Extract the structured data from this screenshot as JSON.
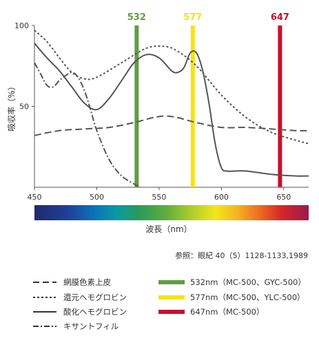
{
  "chart_data": {
    "type": "line",
    "xlabel": "波長（nm）",
    "ylabel": "吸収率（%）",
    "xlim": [
      450,
      670
    ],
    "ylim": [
      0,
      100
    ],
    "xticks": [
      "450",
      "500",
      "550",
      "600",
      "650"
    ],
    "yticks": [
      "100",
      "50"
    ],
    "grid": false,
    "legend_placement": "below",
    "series": [
      {
        "name": "網膜色素上皮",
        "style": "dashed",
        "x": [
          450,
          470,
          490,
          510,
          530,
          545,
          555,
          565,
          580,
          600,
          620,
          640,
          660,
          670
        ],
        "y": [
          32,
          35,
          36,
          37,
          40,
          43,
          44,
          43,
          40,
          37,
          37,
          36,
          35,
          35
        ]
      },
      {
        "name": "還元ヘモグロビン",
        "style": "dotted",
        "x": [
          450,
          460,
          470,
          480,
          490,
          500,
          520,
          540,
          555,
          565,
          580,
          600,
          620,
          640,
          660,
          670
        ],
        "y": [
          97,
          90,
          80,
          71,
          67,
          68,
          77,
          86,
          87,
          84,
          75,
          57,
          43,
          34,
          29,
          27
        ]
      },
      {
        "name": "酸化ヘモグロビン",
        "style": "solid",
        "x": [
          450,
          460,
          470,
          480,
          490,
          500,
          510,
          520,
          530,
          540,
          550,
          560,
          565,
          570,
          575,
          580,
          585,
          590,
          595,
          600,
          605,
          610,
          620,
          640,
          660,
          670
        ],
        "y": [
          89,
          80,
          72,
          62,
          52,
          48,
          55,
          66,
          77,
          82,
          80,
          72,
          71,
          74,
          83,
          83,
          72,
          52,
          27,
          12,
          10,
          10,
          10,
          8,
          7,
          7
        ],
        "name_note": ""
      },
      {
        "name": "キサントフィル",
        "style": "dash-dot",
        "x": [
          450,
          455,
          460,
          465,
          470,
          475,
          480,
          485,
          490,
          495,
          500,
          510,
          520,
          530,
          535
        ],
        "y": [
          77,
          70,
          63,
          62,
          66,
          69,
          71,
          68,
          60,
          48,
          35,
          17,
          7,
          2,
          0
        ]
      }
    ],
    "wavelength_lines": [
      {
        "label": "532",
        "x": 532,
        "color": "#5e9e3f",
        "legend": "532nm（MC-500、GYC-500）"
      },
      {
        "label": "577",
        "x": 577,
        "color": "#f4e317",
        "legend": "577nm（MC-500、YLC-500）"
      },
      {
        "label": "647",
        "x": 647,
        "color": "#c8102e",
        "legend": "647nm（MC-500）"
      }
    ]
  },
  "reference": "参照：眼紀 40（5）1128-1133,1989"
}
